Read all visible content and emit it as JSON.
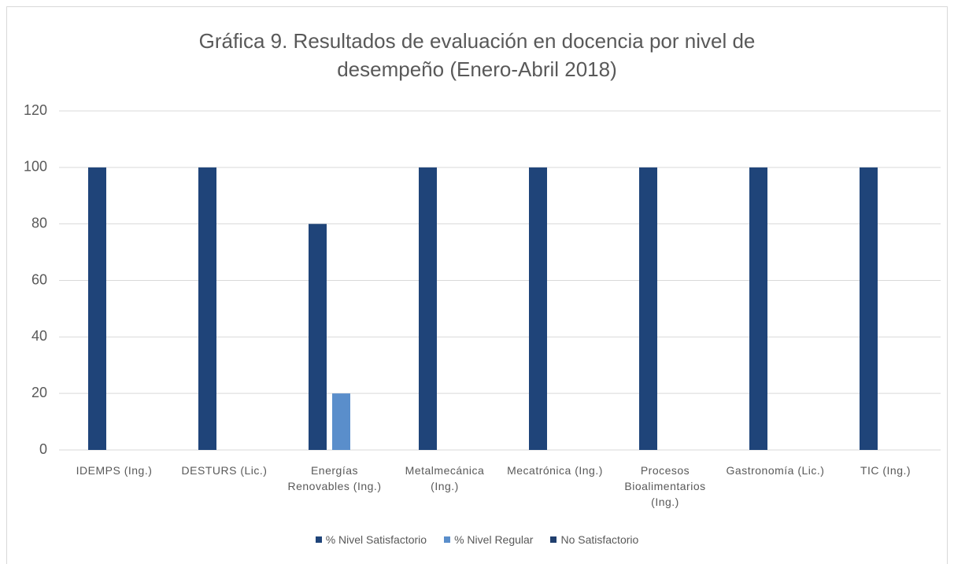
{
  "chart_data": {
    "type": "bar",
    "title": "Gráfica 9. Resultados de evaluación en docencia por nivel de desempeño (Enero-Abril 2018)",
    "categories": [
      "IDEMPS (Ing.)",
      "DESTURS (Lic.)",
      "Energías Renovables (Ing.)",
      "Metalmecánica (Ing.)",
      "Mecatrónica (Ing.)",
      "Procesos Bioalimentarios (Ing.)",
      "Gastronomía (Lic.)",
      "TIC (Ing.)"
    ],
    "series": [
      {
        "name": "% Nivel Satisfactorio",
        "color": "#1f4479",
        "values": [
          100,
          100,
          80,
          100,
          100,
          100,
          100,
          100
        ]
      },
      {
        "name": "% Nivel Regular",
        "color": "#5a8ecb",
        "values": [
          0,
          0,
          20,
          0,
          0,
          0,
          0,
          0
        ]
      },
      {
        "name": "No Satisfactorio",
        "color": "#203f6e",
        "values": [
          0,
          0,
          0,
          0,
          0,
          0,
          0,
          0
        ]
      }
    ],
    "ylim": [
      0,
      120
    ],
    "yticks": [
      0,
      20,
      40,
      60,
      80,
      100,
      120
    ],
    "grid": true,
    "legend": "bottom"
  }
}
